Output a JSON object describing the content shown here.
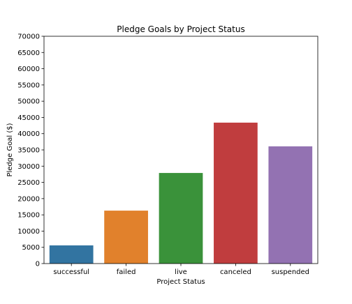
{
  "chart_data": {
    "type": "bar",
    "title": "Pledge Goals by Project Status",
    "xlabel": "Project Status",
    "ylabel": "Pledge Goal ($)",
    "categories": [
      "successful",
      "failed",
      "live",
      "canceled",
      "suspended"
    ],
    "values": [
      5600,
      16300,
      27900,
      43400,
      36100
    ],
    "colors": [
      "#3274a1",
      "#e1812c",
      "#3a923a",
      "#c03d3e",
      "#9372b2"
    ],
    "ylim": [
      0,
      70000
    ],
    "yticks": [
      "0",
      "5000",
      "10000",
      "15000",
      "20000",
      "25000",
      "30000",
      "35000",
      "40000",
      "45000",
      "50000",
      "55000",
      "60000",
      "65000",
      "70000"
    ],
    "grid": false,
    "legend": "none"
  }
}
